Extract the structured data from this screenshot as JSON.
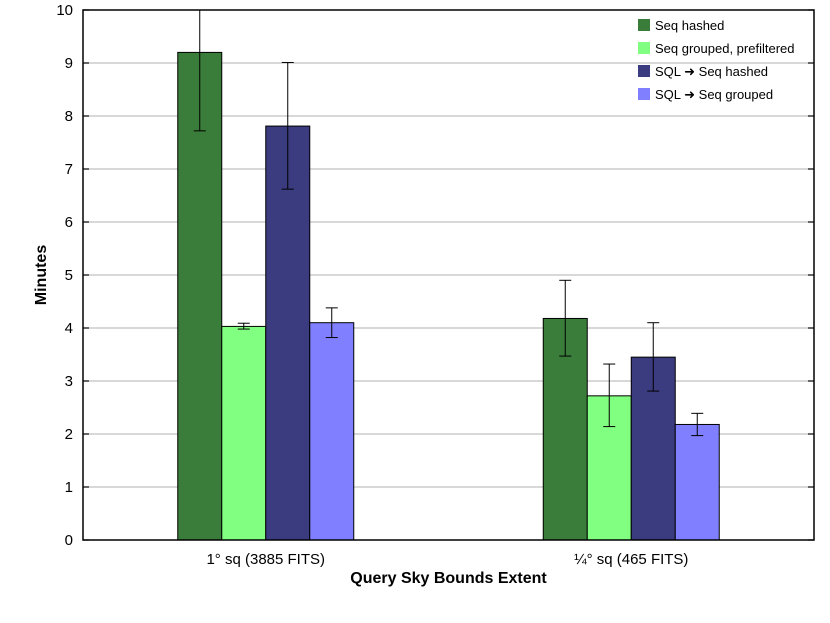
{
  "chart_data": {
    "type": "bar",
    "title": "",
    "xlabel": "Query Sky Bounds Extent",
    "ylabel": "Minutes",
    "ylim": [
      0,
      10
    ],
    "yticks": [
      "0",
      "1",
      "2",
      "3",
      "4",
      "5",
      "6",
      "7",
      "8",
      "9",
      "10"
    ],
    "grid": true,
    "legend_position": "top-right",
    "categories": [
      "1° sq (3885 FITS)",
      "¼° sq (465 FITS)"
    ],
    "series": [
      {
        "name": "Seq hashed",
        "color": "#3a7d3a",
        "values": [
          9.2,
          4.18
        ],
        "err_low": [
          7.72,
          3.47
        ],
        "err_high": [
          10.0,
          4.9
        ]
      },
      {
        "name": "Seq grouped, prefiltered",
        "color": "#80ff80",
        "values": [
          4.03,
          2.72
        ],
        "err_low": [
          3.98,
          2.14
        ],
        "err_high": [
          4.09,
          3.32
        ]
      },
      {
        "name": "SQL ➜ Seq hashed",
        "color": "#3b3b7f",
        "values": [
          7.81,
          3.45
        ],
        "err_low": [
          6.62,
          2.81
        ],
        "err_high": [
          9.01,
          4.1
        ]
      },
      {
        "name": "SQL ➜ Seq grouped",
        "color": "#7f7fff",
        "values": [
          4.1,
          2.18
        ],
        "err_low": [
          3.82,
          1.97
        ],
        "err_high": [
          4.38,
          2.39
        ]
      }
    ]
  }
}
